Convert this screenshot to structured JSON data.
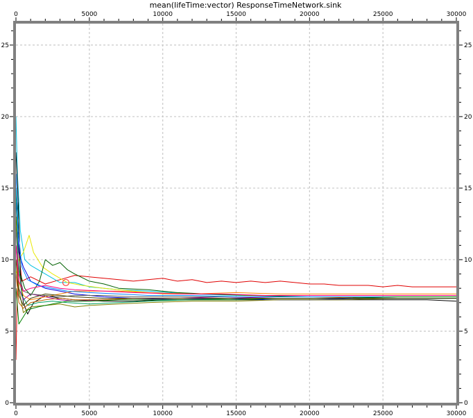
{
  "chart_data": {
    "type": "line",
    "title": "mean(lifeTime:vector) ResponseTimeNetwork.sink",
    "xlabel": "",
    "ylabel": "",
    "xlim": [
      0,
      30000
    ],
    "ylim": [
      0,
      26.5
    ],
    "x_ticks": [
      "0",
      "5000",
      "10000",
      "15000",
      "20000",
      "25000",
      "30000"
    ],
    "y_ticks": [
      "0",
      "5",
      "10",
      "15",
      "20",
      "25"
    ],
    "grid": true,
    "legend": "none",
    "series": [
      {
        "color": "#e00000",
        "points": [
          [
            0,
            3
          ],
          [
            150,
            11
          ],
          [
            400,
            8.5
          ],
          [
            1000,
            8.8
          ],
          [
            2000,
            8.3
          ],
          [
            3000,
            8.6
          ],
          [
            4000,
            8.9
          ],
          [
            5000,
            8.8
          ],
          [
            6000,
            8.7
          ],
          [
            7000,
            8.6
          ],
          [
            8000,
            8.5
          ],
          [
            9000,
            8.6
          ],
          [
            10000,
            8.7
          ],
          [
            11000,
            8.5
          ],
          [
            12000,
            8.6
          ],
          [
            13000,
            8.4
          ],
          [
            14000,
            8.5
          ],
          [
            15000,
            8.4
          ],
          [
            16000,
            8.5
          ],
          [
            17000,
            8.4
          ],
          [
            18000,
            8.5
          ],
          [
            19000,
            8.4
          ],
          [
            20000,
            8.3
          ],
          [
            21000,
            8.3
          ],
          [
            22000,
            8.2
          ],
          [
            23000,
            8.2
          ],
          [
            24000,
            8.2
          ],
          [
            25000,
            8.1
          ],
          [
            26000,
            8.2
          ],
          [
            27000,
            8.1
          ],
          [
            28000,
            8.1
          ],
          [
            29000,
            8.1
          ],
          [
            30000,
            8.1
          ]
        ]
      },
      {
        "color": "#00c0e0",
        "points": [
          [
            0,
            20
          ],
          [
            100,
            16
          ],
          [
            300,
            12
          ],
          [
            600,
            10
          ],
          [
            1000,
            9.6
          ],
          [
            2000,
            9
          ],
          [
            3000,
            8.4
          ],
          [
            4000,
            8.4
          ],
          [
            5000,
            8.1
          ],
          [
            7000,
            7.9
          ],
          [
            9000,
            7.8
          ],
          [
            12000,
            7.6
          ],
          [
            15000,
            7.5
          ],
          [
            18000,
            7.5
          ],
          [
            21000,
            7.5
          ],
          [
            24000,
            7.5
          ],
          [
            27000,
            7.5
          ],
          [
            30000,
            7.5
          ]
        ]
      },
      {
        "color": "#e8e800",
        "points": [
          [
            0,
            9
          ],
          [
            200,
            10
          ],
          [
            500,
            10.5
          ],
          [
            900,
            11.7
          ],
          [
            1200,
            10.5
          ],
          [
            1800,
            9.5
          ],
          [
            2500,
            9
          ],
          [
            3500,
            8.4
          ],
          [
            4500,
            8.2
          ],
          [
            6000,
            8
          ],
          [
            8000,
            7.8
          ],
          [
            10000,
            7.6
          ],
          [
            13000,
            7.6
          ],
          [
            16000,
            7.5
          ],
          [
            19000,
            7.5
          ],
          [
            22000,
            7.5
          ],
          [
            25000,
            7.5
          ],
          [
            28000,
            7.5
          ],
          [
            30000,
            7.5
          ]
        ]
      },
      {
        "color": "#006000",
        "points": [
          [
            0,
            12
          ],
          [
            150,
            14
          ],
          [
            300,
            9
          ],
          [
            600,
            8
          ],
          [
            1000,
            7.5
          ],
          [
            1600,
            8.5
          ],
          [
            2000,
            10
          ],
          [
            2500,
            9.6
          ],
          [
            3000,
            9.8
          ],
          [
            3500,
            9.3
          ],
          [
            4000,
            9
          ],
          [
            5000,
            8.5
          ],
          [
            6000,
            8.3
          ],
          [
            7000,
            8
          ],
          [
            9000,
            7.9
          ],
          [
            11000,
            7.7
          ],
          [
            13000,
            7.6
          ],
          [
            16000,
            7.5
          ],
          [
            20000,
            7.4
          ],
          [
            24000,
            7.4
          ],
          [
            28000,
            7.4
          ],
          [
            30000,
            7.4
          ]
        ]
      },
      {
        "color": "#000000",
        "points": [
          [
            0,
            17.5
          ],
          [
            120,
            15
          ],
          [
            300,
            9
          ],
          [
            500,
            7
          ],
          [
            800,
            6.2
          ],
          [
            1200,
            7
          ],
          [
            2000,
            7.5
          ],
          [
            3000,
            7.3
          ],
          [
            4000,
            7.2
          ],
          [
            6000,
            7.1
          ],
          [
            8000,
            7.1
          ],
          [
            10000,
            7.2
          ],
          [
            13000,
            7.2
          ],
          [
            16000,
            7.2
          ],
          [
            20000,
            7.2
          ],
          [
            24000,
            7.2
          ],
          [
            28000,
            7.2
          ],
          [
            30000,
            7.1
          ]
        ]
      },
      {
        "color": "#0000e0",
        "points": [
          [
            0,
            14
          ],
          [
            200,
            10.5
          ],
          [
            500,
            9.5
          ],
          [
            1000,
            8.5
          ],
          [
            2000,
            8
          ],
          [
            3000,
            7.8
          ],
          [
            4000,
            7.6
          ],
          [
            6000,
            7.4
          ],
          [
            8000,
            7.3
          ],
          [
            11000,
            7.2
          ],
          [
            14000,
            7.3
          ],
          [
            17000,
            7.2
          ],
          [
            20000,
            7.2
          ],
          [
            24000,
            7.3
          ],
          [
            28000,
            7.3
          ],
          [
            30000,
            7.3
          ]
        ]
      },
      {
        "color": "#a000a0",
        "points": [
          [
            0,
            11
          ],
          [
            200,
            8
          ],
          [
            500,
            7.2
          ],
          [
            1000,
            7.6
          ],
          [
            2000,
            7.4
          ],
          [
            3000,
            7.2
          ],
          [
            4000,
            7.1
          ],
          [
            6000,
            7.2
          ],
          [
            8000,
            7.3
          ],
          [
            11000,
            7.3
          ],
          [
            14000,
            7.4
          ],
          [
            18000,
            7.3
          ],
          [
            22000,
            7.3
          ],
          [
            26000,
            7.4
          ],
          [
            30000,
            7.4
          ]
        ]
      },
      {
        "color": "#808000",
        "points": [
          [
            0,
            13
          ],
          [
            200,
            8
          ],
          [
            500,
            6.3
          ],
          [
            1000,
            6.7
          ],
          [
            2000,
            6.8
          ],
          [
            3000,
            6.9
          ],
          [
            4000,
            6.7
          ],
          [
            5000,
            6.8
          ],
          [
            7000,
            6.9
          ],
          [
            9000,
            7
          ],
          [
            12000,
            7.1
          ],
          [
            15000,
            7.1
          ],
          [
            18000,
            7.2
          ],
          [
            22000,
            7.2
          ],
          [
            26000,
            7.3
          ],
          [
            30000,
            7.3
          ]
        ]
      },
      {
        "color": "#ff8000",
        "points": [
          [
            0,
            10
          ],
          [
            200,
            8.5
          ],
          [
            500,
            7.5
          ],
          [
            1000,
            7.2
          ],
          [
            2000,
            7.4
          ],
          [
            3000,
            7.6
          ],
          [
            4000,
            7.8
          ],
          [
            5000,
            7.8
          ],
          [
            7000,
            7.8
          ],
          [
            9000,
            7.7
          ],
          [
            12000,
            7.6
          ],
          [
            15000,
            7.7
          ],
          [
            18000,
            7.6
          ],
          [
            22000,
            7.6
          ],
          [
            26000,
            7.6
          ],
          [
            30000,
            7.6
          ]
        ]
      },
      {
        "color": "#00a060",
        "points": [
          [
            0,
            15
          ],
          [
            150,
            10
          ],
          [
            400,
            7.5
          ],
          [
            800,
            6.8
          ],
          [
            1500,
            7
          ],
          [
            2500,
            7.1
          ],
          [
            3500,
            7
          ],
          [
            5000,
            6.9
          ],
          [
            7000,
            7
          ],
          [
            9000,
            7.1
          ],
          [
            12000,
            7.2
          ],
          [
            15000,
            7.3
          ],
          [
            18000,
            7.3
          ],
          [
            22000,
            7.3
          ],
          [
            26000,
            7.3
          ],
          [
            30000,
            7.3
          ]
        ]
      },
      {
        "color": "#606060",
        "points": [
          [
            0,
            12
          ],
          [
            200,
            9
          ],
          [
            500,
            7.8
          ],
          [
            1000,
            7.6
          ],
          [
            2000,
            7.5
          ],
          [
            3000,
            7.4
          ],
          [
            4000,
            7.5
          ],
          [
            6000,
            7.5
          ],
          [
            8000,
            7.4
          ],
          [
            11000,
            7.4
          ],
          [
            14000,
            7.4
          ],
          [
            17000,
            7.4
          ],
          [
            20000,
            7.4
          ],
          [
            24000,
            7.4
          ],
          [
            28000,
            7.4
          ],
          [
            30000,
            7.4
          ]
        ]
      },
      {
        "color": "#c06000",
        "points": [
          [
            0,
            9
          ],
          [
            200,
            7
          ],
          [
            500,
            6.6
          ],
          [
            1000,
            7
          ],
          [
            2000,
            7.2
          ],
          [
            3000,
            7.3
          ],
          [
            4000,
            7.2
          ],
          [
            6000,
            7.2
          ],
          [
            8000,
            7.3
          ],
          [
            11000,
            7.3
          ],
          [
            14000,
            7.3
          ],
          [
            17000,
            7.3
          ],
          [
            20000,
            7.3
          ],
          [
            24000,
            7.4
          ],
          [
            28000,
            7.4
          ],
          [
            30000,
            7.4
          ]
        ]
      },
      {
        "color": "#0080ff",
        "points": [
          [
            0,
            16
          ],
          [
            150,
            12
          ],
          [
            400,
            9.5
          ],
          [
            800,
            8.6
          ],
          [
            1500,
            8.2
          ],
          [
            2500,
            8
          ],
          [
            3500,
            7.8
          ],
          [
            5000,
            7.7
          ],
          [
            7000,
            7.6
          ],
          [
            9000,
            7.5
          ],
          [
            12000,
            7.5
          ],
          [
            15000,
            7.4
          ],
          [
            18000,
            7.4
          ],
          [
            22000,
            7.4
          ],
          [
            26000,
            7.4
          ],
          [
            30000,
            7.4
          ]
        ]
      },
      {
        "color": "#008000",
        "points": [
          [
            0,
            8
          ],
          [
            200,
            5.5
          ],
          [
            500,
            6
          ],
          [
            800,
            6.5
          ],
          [
            1500,
            6.7
          ],
          [
            2500,
            6.9
          ],
          [
            3500,
            7.1
          ],
          [
            5000,
            7.1
          ],
          [
            7000,
            7.2
          ],
          [
            9000,
            7.2
          ],
          [
            12000,
            7.2
          ],
          [
            15000,
            7.2
          ],
          [
            18000,
            7.3
          ],
          [
            22000,
            7.3
          ],
          [
            26000,
            7.4
          ],
          [
            30000,
            7.4
          ]
        ]
      },
      {
        "color": "#ff0080",
        "points": [
          [
            0,
            11
          ],
          [
            200,
            8.5
          ],
          [
            500,
            7.8
          ],
          [
            1000,
            8
          ],
          [
            2000,
            8.2
          ],
          [
            3000,
            8
          ],
          [
            4000,
            7.9
          ],
          [
            6000,
            7.8
          ],
          [
            8000,
            7.7
          ],
          [
            11000,
            7.6
          ],
          [
            14000,
            7.6
          ],
          [
            17000,
            7.5
          ],
          [
            20000,
            7.5
          ],
          [
            24000,
            7.5
          ],
          [
            28000,
            7.5
          ],
          [
            30000,
            7.5
          ]
        ]
      },
      {
        "color": "#404000",
        "points": [
          [
            0,
            10
          ],
          [
            200,
            7.5
          ],
          [
            500,
            6.8
          ],
          [
            1000,
            7.3
          ],
          [
            2000,
            7.6
          ],
          [
            3000,
            7.5
          ],
          [
            4000,
            7.4
          ],
          [
            6000,
            7.3
          ],
          [
            8000,
            7.3
          ],
          [
            11000,
            7.3
          ],
          [
            14000,
            7.3
          ],
          [
            17000,
            7.3
          ],
          [
            20000,
            7.3
          ],
          [
            24000,
            7.3
          ],
          [
            28000,
            7.3
          ],
          [
            30000,
            7.3
          ]
        ]
      }
    ],
    "annotations": [
      {
        "type": "circle",
        "x": 3400,
        "y": 8.4,
        "color": "#ff4040"
      }
    ]
  }
}
